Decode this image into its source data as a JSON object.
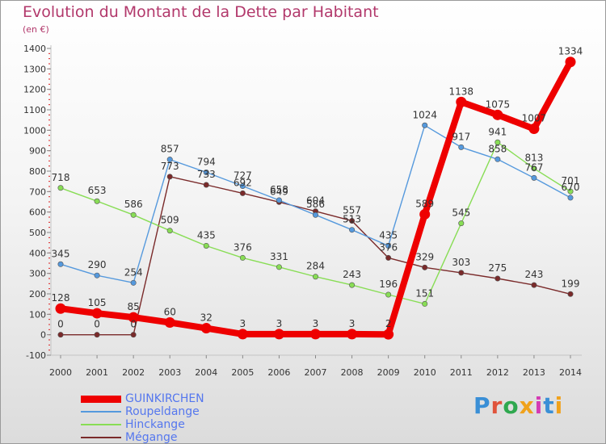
{
  "title": "Evolution du Montant de la Dette par Habitant",
  "subtitle": "(en €)",
  "brand": "Proxiti",
  "chart_data": {
    "type": "line",
    "x": [
      "2000",
      "2001",
      "2002",
      "2003",
      "2004",
      "2005",
      "2006",
      "2007",
      "2008",
      "2009",
      "2010",
      "2011",
      "2012",
      "2013",
      "2014"
    ],
    "ylim": [
      -100,
      1400
    ],
    "yticks": [
      -100,
      0,
      100,
      200,
      300,
      400,
      500,
      600,
      700,
      800,
      900,
      1000,
      1100,
      1200,
      1300,
      1400
    ],
    "grid": false,
    "legend_position": "bottom-left",
    "series": [
      {
        "name": "GUINKIRCHEN",
        "color": "#ee0000",
        "values": [
          128,
          105,
          85,
          60,
          32,
          3,
          3,
          3,
          3,
          2,
          589,
          1138,
          1075,
          1007,
          1334
        ],
        "labels": [
          "128",
          "105",
          "85",
          "60",
          "32",
          "3",
          "3",
          "3",
          "3",
          "2",
          "589",
          "1138",
          "1075",
          "1007",
          "1334"
        ]
      },
      {
        "name": "Roupeldange",
        "color": "#5599dd",
        "values": [
          345,
          290,
          254,
          857,
          794,
          727,
          658,
          586,
          513,
          435,
          1024,
          917,
          858,
          767,
          670
        ],
        "labels": [
          "345",
          "290",
          "254",
          "857",
          "794",
          "727",
          "658",
          "586",
          "513",
          "435",
          "1024",
          "917",
          "858",
          "767",
          "670"
        ]
      },
      {
        "name": "Hinckange",
        "color": "#88dd55",
        "values": [
          718,
          653,
          586,
          509,
          435,
          376,
          331,
          284,
          243,
          196,
          151,
          545,
          941,
          813,
          701
        ],
        "labels": [
          "718",
          "653",
          "586",
          "509",
          "435",
          "376",
          "331",
          "284",
          "243",
          "196",
          "151",
          "545",
          "941",
          "813",
          "701"
        ]
      },
      {
        "name": "Mégange",
        "color": "#7a2a2a",
        "values": [
          0,
          0,
          0,
          773,
          733,
          692,
          649,
          604,
          557,
          376,
          329,
          303,
          275,
          243,
          199
        ],
        "labels": [
          "0",
          "0",
          "0",
          "773",
          "733",
          "692",
          "649",
          "604",
          "557",
          "376",
          "329",
          "303",
          "275",
          "243",
          "199"
        ]
      }
    ]
  }
}
